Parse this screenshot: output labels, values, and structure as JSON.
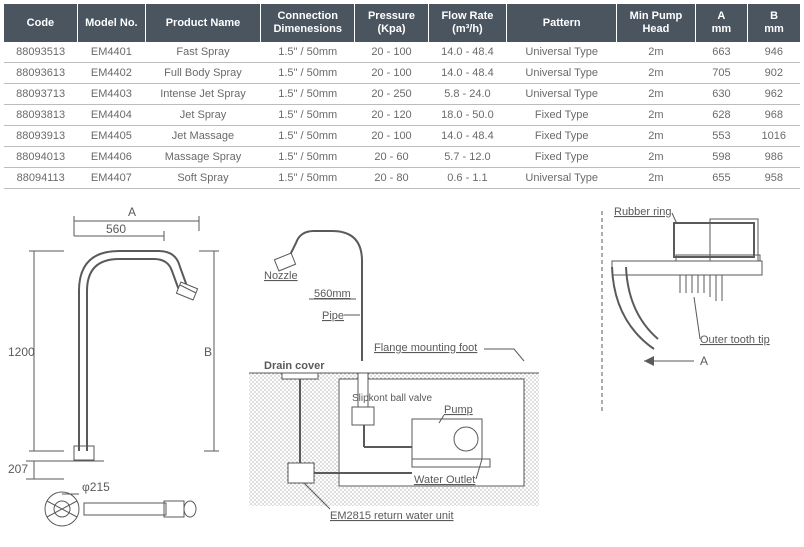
{
  "table": {
    "columns": [
      {
        "label_line1": "Code",
        "label_line2": "",
        "width": 70
      },
      {
        "label_line1": "Model No.",
        "label_line2": "",
        "width": 65
      },
      {
        "label_line1": "Product Name",
        "label_line2": "",
        "width": 110
      },
      {
        "label_line1": "Connection",
        "label_line2": "Dimenesions",
        "width": 90
      },
      {
        "label_line1": "Pressure",
        "label_line2": "(Kpa)",
        "width": 70
      },
      {
        "label_line1": "Flow Rate",
        "label_line2": "(m³/h)",
        "width": 75
      },
      {
        "label_line1": "Pattern",
        "label_line2": "",
        "width": 105
      },
      {
        "label_line1": "Min Pump",
        "label_line2": "Head",
        "width": 75
      },
      {
        "label_line1": "A",
        "label_line2": "mm",
        "width": 50
      },
      {
        "label_line1": "B",
        "label_line2": "mm",
        "width": 50
      }
    ],
    "rows": [
      [
        "88093513",
        "EM4401",
        "Fast Spray",
        "1.5\" / 50mm",
        "20 - 100",
        "14.0 - 48.4",
        "Universal Type",
        "2m",
        "663",
        "946"
      ],
      [
        "88093613",
        "EM4402",
        "Full Body Spray",
        "1.5\" / 50mm",
        "20 - 100",
        "14.0 - 48.4",
        "Universal Type",
        "2m",
        "705",
        "902"
      ],
      [
        "88093713",
        "EM4403",
        "Intense Jet Spray",
        "1.5\" / 50mm",
        "20 - 250",
        "5.8 - 24.0",
        "Universal Type",
        "2m",
        "630",
        "962"
      ],
      [
        "88093813",
        "EM4404",
        "Jet Spray",
        "1.5\" / 50mm",
        "20 - 120",
        "18.0 - 50.0",
        "Fixed Type",
        "2m",
        "628",
        "968"
      ],
      [
        "88093913",
        "EM4405",
        "Jet Massage",
        "1.5\" / 50mm",
        "20 - 100",
        "14.0 - 48.4",
        "Fixed Type",
        "2m",
        "553",
        "1016"
      ],
      [
        "88094013",
        "EM4406",
        "Massage Spray",
        "1.5\" / 50mm",
        "20 - 60",
        "5.7 - 12.0",
        "Fixed Type",
        "2m",
        "598",
        "986"
      ],
      [
        "88094113",
        "EM4407",
        "Soft Spray",
        "1.5\" / 50mm",
        "20 - 80",
        "0.6 - 1.1",
        "Universal Type",
        "2m",
        "655",
        "958"
      ]
    ],
    "header_bg": "#4a5560",
    "header_fg": "#ffffff",
    "row_border": "#bcbcbc",
    "text_color": "#6a6a6a"
  },
  "diagram1": {
    "labels": {
      "A": "A",
      "d560": "560",
      "d1200": "1200",
      "B": "B",
      "d207": "207",
      "phi": "φ215"
    }
  },
  "diagram2": {
    "labels": {
      "nozzle": "Nozzle",
      "d560": "560mm",
      "pipe": "Pipe",
      "drain": "Drain  cover",
      "flange": "Flange mounting foot",
      "slip": "Slipkont ball valve",
      "pump": "Pump",
      "outlet": "Water Outlet",
      "return": "EM2815 return water unit"
    }
  },
  "diagram3": {
    "labels": {
      "rubber": "Rubber ring",
      "outer": "Outer tooth tip",
      "A": "A"
    }
  }
}
